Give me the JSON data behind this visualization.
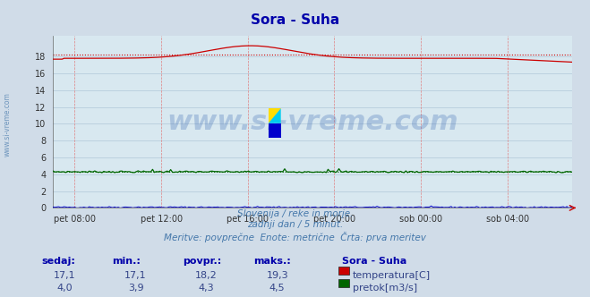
{
  "title": "Sora - Suha",
  "bg_color": "#d0dce8",
  "plot_bg_color": "#d8e8f0",
  "grid_color_h": "#b0c8d8",
  "grid_color_v": "#e08080",
  "x_labels": [
    "pet 08:00",
    "pet 12:00",
    "pet 16:00",
    "pet 20:00",
    "sob 00:00",
    "sob 04:00"
  ],
  "x_ticks_norm": [
    0.0417,
    0.2083,
    0.375,
    0.5417,
    0.7083,
    0.875
  ],
  "y_ticks": [
    0,
    2,
    4,
    6,
    8,
    10,
    12,
    14,
    16,
    18
  ],
  "ylim": [
    0,
    20.5
  ],
  "temp_color": "#cc0000",
  "flow_color": "#006600",
  "height_color": "#0000cc",
  "watermark": "www.si-vreme.com",
  "watermark_color": "#2255aa",
  "watermark_alpha": 0.25,
  "subtitle1": "Slovenija / reke in morje.",
  "subtitle2": "zadnji dan / 5 minut.",
  "subtitle3": "Meritve: povprečne  Enote: metrične  Črta: prva meritev",
  "stat_headers": [
    "sedaj:",
    "min.:",
    "povpr.:",
    "maks.:"
  ],
  "stat_label": "Sora - Suha",
  "temp_vals": [
    "17,1",
    "17,1",
    "18,2",
    "19,3"
  ],
  "flow_vals": [
    "4,0",
    "3,9",
    "4,3",
    "4,5"
  ],
  "temp_label": "temperatura[C]",
  "flow_label": "pretok[m3/s]",
  "temp_avg": 18.2,
  "flow_avg": 4.3,
  "n_points": 288,
  "left_label": "www.si-vreme.com"
}
